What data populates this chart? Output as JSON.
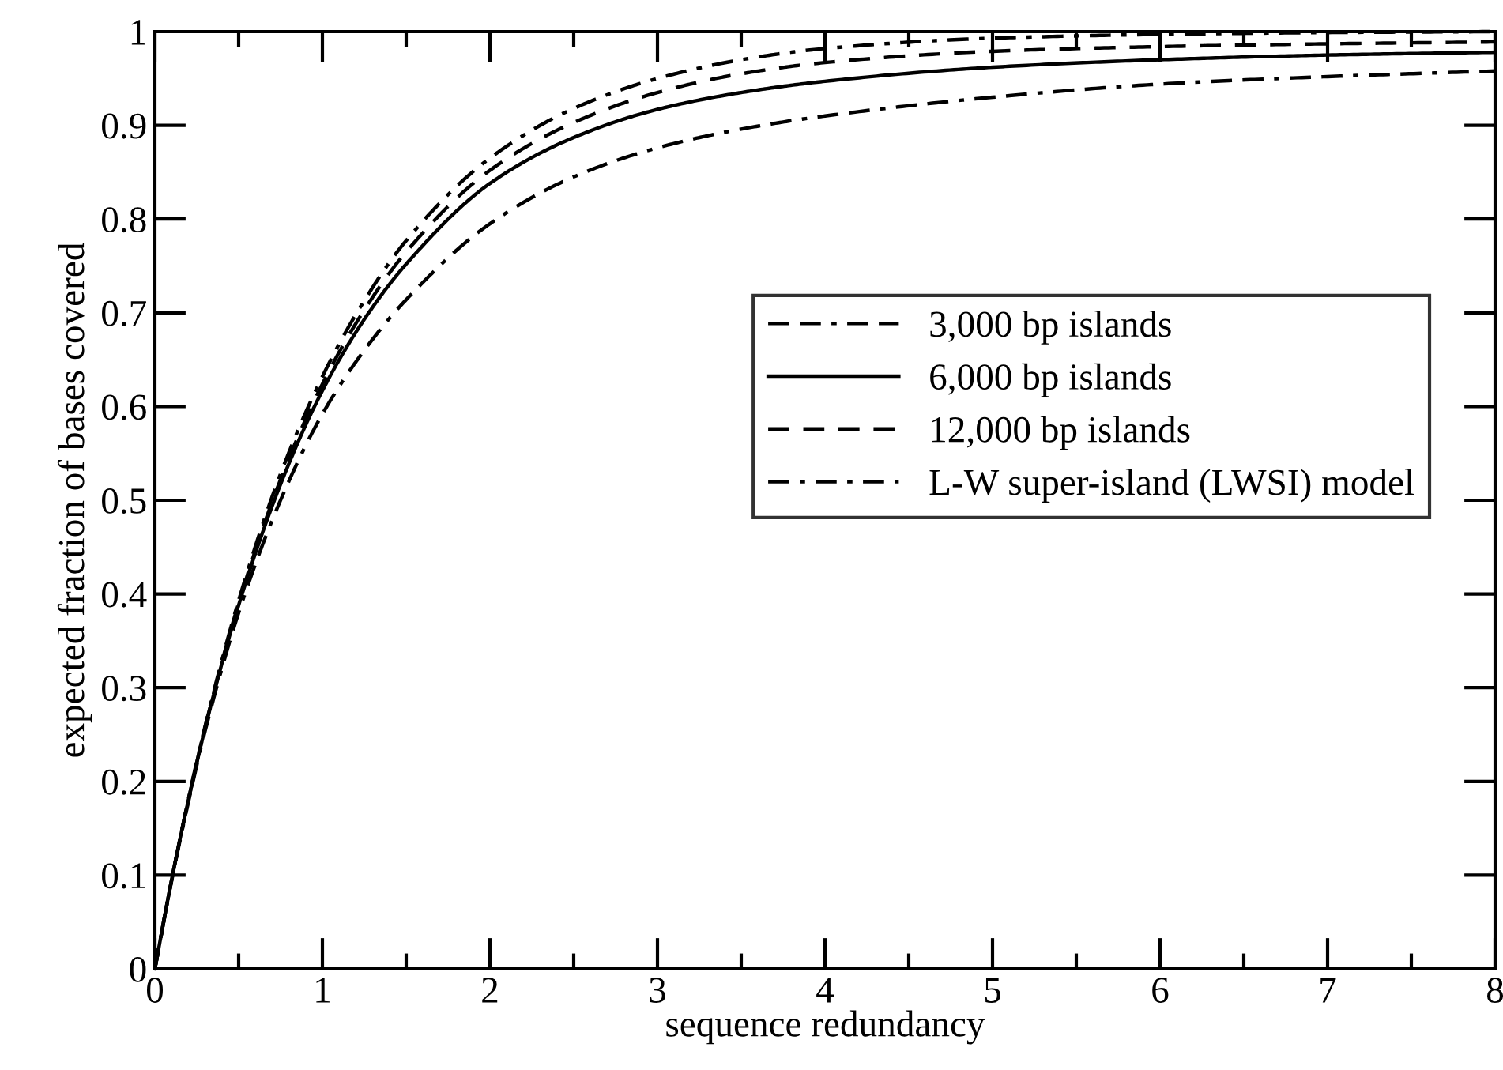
{
  "chart_data": {
    "type": "line",
    "xlabel": "sequence redundancy",
    "ylabel": "expected fraction of bases covered",
    "x": [
      0,
      0.1,
      0.2,
      0.3,
      0.5,
      0.75,
      1,
      1.25,
      1.5,
      2,
      2.5,
      3,
      3.5,
      4,
      5,
      6,
      7,
      8
    ],
    "series": [
      {
        "name": "3,000 bp islands",
        "color": "#000000",
        "line_style": "dashdashdot",
        "values": [
          0,
          0.094,
          0.178,
          0.254,
          0.38,
          0.5,
          0.592,
          0.66,
          0.714,
          0.795,
          0.845,
          0.876,
          0.896,
          0.91,
          0.93,
          0.944,
          0.952,
          0.958
        ]
      },
      {
        "name": "6,000 bp islands",
        "color": "#000000",
        "line_style": "solid",
        "values": [
          0,
          0.095,
          0.18,
          0.257,
          0.388,
          0.517,
          0.617,
          0.693,
          0.752,
          0.838,
          0.887,
          0.917,
          0.935,
          0.947,
          0.962,
          0.97,
          0.975,
          0.978
        ]
      },
      {
        "name": "12,000 bp islands",
        "color": "#000000",
        "line_style": "dashed",
        "values": [
          0,
          0.095,
          0.18,
          0.258,
          0.39,
          0.522,
          0.624,
          0.703,
          0.765,
          0.852,
          0.903,
          0.935,
          0.955,
          0.967,
          0.979,
          0.984,
          0.987,
          0.989
        ]
      },
      {
        "name": "L-W super-island (LWSI) model",
        "color": "#000000",
        "line_style": "dashdot",
        "values": [
          0,
          0.095,
          0.181,
          0.259,
          0.393,
          0.528,
          0.632,
          0.713,
          0.777,
          0.865,
          0.918,
          0.95,
          0.97,
          0.982,
          0.993,
          0.997,
          0.999,
          1.0
        ]
      }
    ],
    "xlim": [
      0,
      8
    ],
    "ylim": [
      0,
      1
    ],
    "xticks": [
      0,
      1,
      2,
      3,
      4,
      5,
      6,
      7,
      8
    ],
    "yticks": [
      0,
      0.1,
      0.2,
      0.3,
      0.4,
      0.5,
      0.6,
      0.7,
      0.8,
      0.9,
      1
    ],
    "grid": false,
    "legend": "right",
    "marker": "none"
  }
}
